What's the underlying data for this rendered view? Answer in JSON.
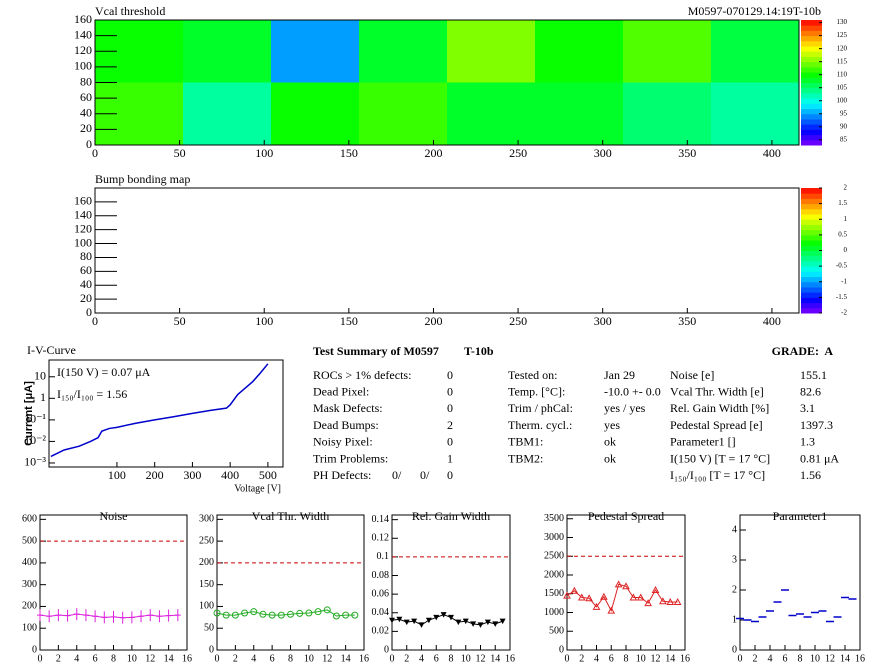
{
  "chart_data": [
    {
      "type": "heatmap",
      "title": "Vcal threshold",
      "subtitle": "M0597-070129.14:19T-10b",
      "xlim": [
        0,
        416
      ],
      "xticks": [
        0,
        50,
        100,
        150,
        200,
        250,
        300,
        350,
        400
      ],
      "ylim": [
        0,
        160
      ],
      "yticks": [
        0,
        20,
        40,
        60,
        80,
        100,
        120,
        140,
        160
      ],
      "values": [
        [
          112,
          103,
          110,
          112,
          108,
          108,
          105,
          103
        ],
        [
          110,
          108,
          95,
          108,
          115,
          110,
          113,
          107
        ]
      ],
      "zlim": [
        83,
        131
      ],
      "zticks": [
        85,
        90,
        95,
        100,
        105,
        110,
        115,
        120,
        125,
        130
      ]
    },
    {
      "type": "heatmap",
      "title": "Bump bonding map",
      "xlim": [
        0,
        416
      ],
      "xticks": [
        0,
        50,
        100,
        150,
        200,
        250,
        300,
        350,
        400
      ],
      "ylim": [
        0,
        180
      ],
      "yticks": [
        0,
        20,
        40,
        60,
        80,
        100,
        120,
        140,
        160
      ],
      "zlim": [
        -2,
        2
      ],
      "zticks": [
        -2,
        -1.5,
        -1,
        -0.5,
        0,
        0.5,
        1,
        1.5,
        2
      ]
    },
    {
      "type": "line",
      "title": "I-V-Curve",
      "xlabel": "Voltage [V]",
      "ylabel": "Current [μA]",
      "annotations": [
        "I(150 V) = 0.07 μA",
        "I₁₅₀/I₁₀₀ =  1.56"
      ],
      "log_y": true,
      "color": "#0000cc",
      "xlim": [
        -80,
        540
      ],
      "xticks": [
        100,
        200,
        300,
        400,
        500
      ],
      "ylim": [
        0.00065,
        60
      ],
      "yticks": [
        {
          "value": 0.001,
          "label": "10⁻³"
        },
        {
          "value": 0.01,
          "label": "10⁻²"
        },
        {
          "value": 0.1,
          "label": "10⁻¹"
        },
        1,
        10
      ],
      "x": [
        -75,
        -40,
        0,
        30,
        50,
        60,
        80,
        100,
        150,
        200,
        250,
        300,
        350,
        390,
        400,
        420,
        440,
        460,
        480,
        500
      ],
      "values": [
        0.002,
        0.004,
        0.006,
        0.01,
        0.015,
        0.03,
        0.04,
        0.045,
        0.07,
        0.1,
        0.14,
        0.2,
        0.28,
        0.35,
        0.5,
        1.5,
        3,
        6,
        15,
        40
      ]
    },
    {
      "type": "line",
      "title": "Noise",
      "color": "#dd22dd",
      "marker": "bar",
      "limit": 500,
      "xlim": [
        0,
        16
      ],
      "xticks": [
        0,
        2,
        4,
        6,
        8,
        10,
        12,
        14,
        16
      ],
      "ylim": [
        0,
        620
      ],
      "yticks": [
        0,
        100,
        200,
        300,
        400,
        500,
        600
      ],
      "x": [
        0,
        1,
        2,
        3,
        4,
        5,
        6,
        7,
        8,
        9,
        10,
        11,
        12,
        13,
        14,
        15
      ],
      "values": [
        160,
        155,
        160,
        158,
        165,
        160,
        155,
        150,
        152,
        148,
        150,
        155,
        160,
        155,
        158,
        160
      ]
    },
    {
      "type": "line",
      "title": "Vcal Thr. Width",
      "color": "#22aa22",
      "marker": "circle",
      "limit": 200,
      "xlim": [
        0,
        16
      ],
      "xticks": [
        0,
        2,
        4,
        6,
        8,
        10,
        12,
        14,
        16
      ],
      "ylim": [
        0,
        310
      ],
      "yticks": [
        0,
        50,
        100,
        150,
        200,
        250,
        300
      ],
      "x": [
        0,
        1,
        2,
        3,
        4,
        5,
        6,
        7,
        8,
        9,
        10,
        11,
        12,
        13,
        14,
        15
      ],
      "values": [
        85,
        80,
        80,
        85,
        88,
        82,
        80,
        80,
        82,
        84,
        85,
        88,
        92,
        78,
        80,
        80
      ]
    },
    {
      "type": "line",
      "title": "Rel. Gain Width",
      "color": "#000000",
      "marker": "tri-down",
      "limit": 0.1,
      "xlim": [
        0,
        16
      ],
      "xticks": [
        0,
        2,
        4,
        6,
        8,
        10,
        12,
        14,
        16
      ],
      "ylim": [
        0,
        0.145
      ],
      "yticks": [
        0,
        0.02,
        0.04,
        0.06,
        0.08,
        0.1,
        0.12,
        0.14
      ],
      "x": [
        0,
        1,
        2,
        3,
        4,
        5,
        6,
        7,
        8,
        9,
        10,
        11,
        12,
        13,
        14,
        15
      ],
      "values": [
        0.032,
        0.033,
        0.03,
        0.031,
        0.027,
        0.032,
        0.035,
        0.038,
        0.035,
        0.03,
        0.031,
        0.028,
        0.027,
        0.03,
        0.028,
        0.031
      ]
    },
    {
      "type": "line",
      "title": "Pedestal Spread",
      "color": "#dd2222",
      "marker": "tri-up",
      "limit": 2500,
      "xlim": [
        0,
        16
      ],
      "xticks": [
        0,
        2,
        4,
        6,
        8,
        10,
        12,
        14,
        16
      ],
      "ylim": [
        0,
        3600
      ],
      "yticks": [
        0,
        500,
        1000,
        1500,
        2000,
        2500,
        3000,
        3500
      ],
      "x": [
        0,
        1,
        2,
        3,
        4,
        5,
        6,
        7,
        8,
        9,
        10,
        11,
        12,
        13,
        14,
        15
      ],
      "values": [
        1450,
        1580,
        1400,
        1380,
        1150,
        1420,
        1050,
        1750,
        1700,
        1400,
        1400,
        1250,
        1600,
        1300,
        1280,
        1280
      ]
    },
    {
      "type": "points",
      "title": "Parameter1",
      "color": "#0000cc",
      "marker": "dash",
      "xlim": [
        0,
        16
      ],
      "xticks": [
        0,
        2,
        4,
        6,
        8,
        10,
        12,
        14,
        16
      ],
      "ylim": [
        0,
        4.5
      ],
      "yticks": [
        0,
        1,
        2,
        3,
        4
      ],
      "x": [
        0,
        1,
        2,
        3,
        4,
        5,
        6,
        7,
        8,
        9,
        10,
        11,
        12,
        13,
        14,
        15
      ],
      "values": [
        1.05,
        1.0,
        0.95,
        1.1,
        1.3,
        1.6,
        2.0,
        1.15,
        1.2,
        1.1,
        1.25,
        1.3,
        0.95,
        1.1,
        1.75,
        1.7
      ]
    }
  ],
  "summary": {
    "title": "Test Summary of M0597",
    "tag": "T-10b",
    "grade": "GRADE:  A",
    "left": [
      [
        "ROCs > 1% defects:",
        "0"
      ],
      [
        "Dead Pixel:",
        "0"
      ],
      [
        "Mask Defects:",
        "0"
      ],
      [
        "Dead Bumps:",
        "2"
      ],
      [
        "Noisy Pixel:",
        "0"
      ],
      [
        "Trim Problems:",
        "1"
      ]
    ],
    "ph": [
      "PH Defects:",
      "0/",
      "0/",
      "0"
    ],
    "middle": [
      [
        "Tested on:",
        "Jan 29"
      ],
      [
        "Temp. [°C]:",
        "-10.0 +- 0.0"
      ],
      [
        "Trim / phCal:",
        "yes / yes"
      ],
      [
        "Therm. cycl.:",
        "yes"
      ],
      [
        "TBM1:",
        "ok"
      ],
      [
        "TBM2:",
        "ok"
      ]
    ],
    "right": [
      [
        "Noise [e]",
        "155.1"
      ],
      [
        "Vcal Thr. Width [e]",
        "82.6"
      ],
      [
        "Rel. Gain Width [%]",
        "3.1"
      ],
      [
        "Pedestal Spread [e]",
        "1397.3"
      ],
      [
        "Parameter1 []",
        "1.3"
      ],
      [
        "I(150 V) [T = 17 °C]",
        "0.81 μA"
      ],
      [
        "I₁₅₀/I₁₀₀ [T = 17 °C]",
        "1.56"
      ]
    ]
  }
}
